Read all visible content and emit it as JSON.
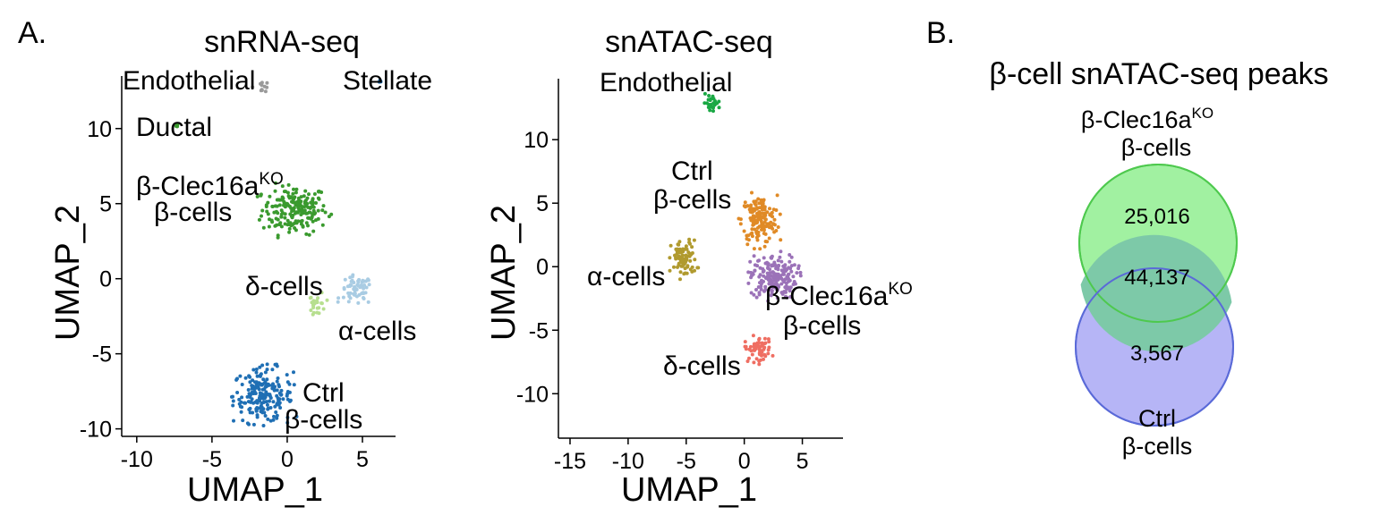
{
  "panel_labels": {
    "a": "A.",
    "b": "B."
  },
  "colors": {
    "beta_ko_rna": "#3a9a2e",
    "ctrl_rna": "#1f6fb4",
    "alpha_rna": "#a9cce3",
    "delta_rna": "#b7df8f",
    "endothelial_rna": "#9a9a9a",
    "beta_ctrl_atac": "#e08a26",
    "beta_ko_atac": "#9b72b8",
    "alpha_atac": "#b09a2e",
    "delta_atac": "#ef6e62",
    "endothelial_atac": "#1aa844",
    "venn_ko": "#90ee90",
    "venn_ctrl": "#a9a8f5",
    "venn_overlap": "#7dc9a8"
  },
  "chart_data": [
    {
      "type": "scatter",
      "title": "snRNA-seq",
      "xlabel": "UMAP_1",
      "ylabel": "UMAP_2",
      "xlim": [
        -11,
        7.2
      ],
      "ylim": [
        -10.5,
        13.5
      ],
      "xticks": [
        "-10",
        "-5",
        "0",
        "5"
      ],
      "xtick_values": [
        -10,
        -5,
        0,
        5
      ],
      "yticks": [
        "-10",
        "-5",
        "0",
        "5",
        "10"
      ],
      "ytick_values": [
        -10,
        -5,
        0,
        5,
        10
      ],
      "clusters": [
        {
          "name": "β-Clec16a",
          "name_sup": "KO",
          "name_line2": "β-cells",
          "color_key": "beta_ko_rna",
          "cx": 0.5,
          "cy": 4.6,
          "rx": 2.4,
          "ry": 1.8
        },
        {
          "name": "Ctrl",
          "name_line2": "β-cells",
          "color_key": "ctrl_rna",
          "cx": -1.6,
          "cy": -7.8,
          "rx": 2.2,
          "ry": 2.0
        },
        {
          "name": "α-cells",
          "color_key": "alpha_rna",
          "cx": 4.6,
          "cy": -0.8,
          "rx": 1.2,
          "ry": 1.1
        },
        {
          "name": "δ-cells",
          "color_key": "delta_rna",
          "cx": 2.0,
          "cy": -1.7,
          "rx": 0.6,
          "ry": 0.9
        },
        {
          "name": "Endothelial",
          "color_key": "endothelial_rna",
          "cx": -1.7,
          "cy": 12.8,
          "rx": 0.6,
          "ry": 0.4
        },
        {
          "name": "Ductal",
          "color_key": "beta_ko_rna",
          "cx": -7.3,
          "cy": 10.2,
          "rx": 0.1,
          "ry": 0.1
        },
        {
          "name": "Stellate",
          "color_key": "ctrl_rna",
          "cx": 6.2,
          "cy": 13.2,
          "rx": 0.1,
          "ry": 0.1
        }
      ]
    },
    {
      "type": "scatter",
      "title": "snATAC-seq",
      "xlabel": "UMAP_1",
      "ylabel": "UMAP_2",
      "xlim": [
        -16,
        8.5
      ],
      "ylim": [
        -13.5,
        14.8
      ],
      "xticks": [
        "-15",
        "-10",
        "-5",
        "0",
        "5"
      ],
      "xtick_values": [
        -15,
        -10,
        -5,
        0,
        5
      ],
      "yticks": [
        "-10",
        "-5",
        "0",
        "5",
        "10"
      ],
      "ytick_values": [
        -10,
        -5,
        0,
        5,
        10
      ],
      "clusters": [
        {
          "name": "Ctrl",
          "name_line2": "β-cells",
          "color_key": "beta_ctrl_atac",
          "cx": 1.3,
          "cy": 3.7,
          "rx": 1.7,
          "ry": 2.1
        },
        {
          "name": "β-Clec16a",
          "name_sup": "KO",
          "name_line2": "β-cells",
          "color_key": "beta_ko_atac",
          "cx": 2.5,
          "cy": -0.8,
          "rx": 2.2,
          "ry": 1.9
        },
        {
          "name": "α-cells",
          "color_key": "alpha_atac",
          "cx": -5.2,
          "cy": 0.6,
          "rx": 1.2,
          "ry": 1.6
        },
        {
          "name": "δ-cells",
          "color_key": "delta_atac",
          "cx": 1.2,
          "cy": -6.5,
          "rx": 1.3,
          "ry": 1.1
        },
        {
          "name": "Endothelial",
          "color_key": "endothelial_atac",
          "cx": -2.8,
          "cy": 12.9,
          "rx": 0.8,
          "ry": 0.7
        }
      ]
    },
    {
      "type": "venn",
      "title": "β-cell snATAC-seq peaks",
      "sets": [
        {
          "name": "β-Clec16a",
          "name_sup": "KO",
          "name_line2": "β-cells",
          "unique": "25,016",
          "color_key": "venn_ko"
        },
        {
          "name": "Ctrl",
          "name_line2": "β-cells",
          "unique": "3,567",
          "color_key": "venn_ctrl"
        }
      ],
      "overlap": "44,137"
    }
  ]
}
